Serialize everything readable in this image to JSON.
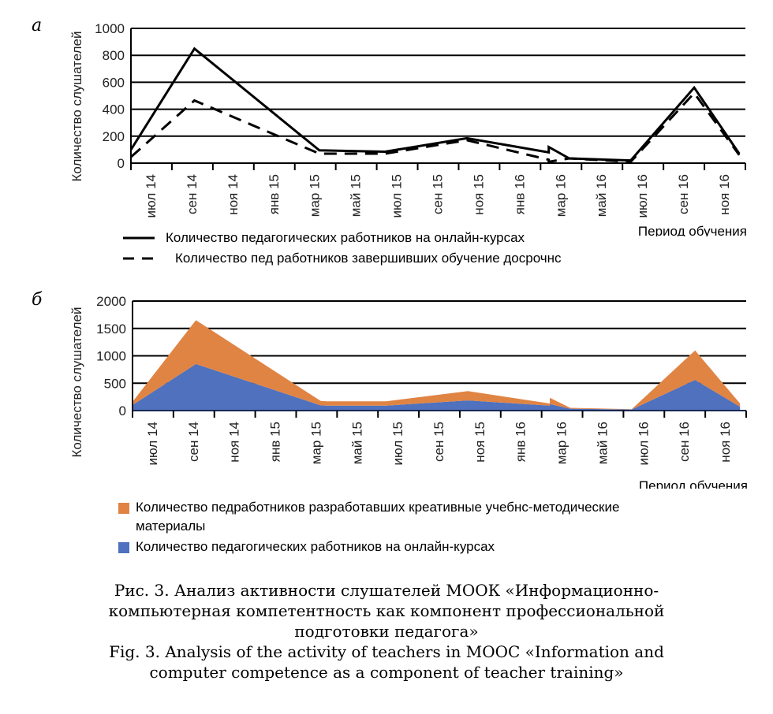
{
  "chart_data": [
    {
      "panel": "а",
      "type": "line",
      "ylabel": "Количество слушателей",
      "xlabel": "Период обучения",
      "ylim": [
        0,
        1000
      ],
      "yticks": [
        "0",
        "200",
        "400",
        "600",
        "800",
        "1000"
      ],
      "categories": [
        "июл 14",
        "сен 14",
        "ноя 14",
        "янв 15",
        "мар 15",
        "май 15",
        "июл 15",
        "сен 15",
        "ноя 15",
        "янв 16",
        "мар 16",
        "май 16",
        "июл 16",
        "сен 16",
        "ноя 16"
      ],
      "grid": true,
      "series": [
        {
          "name": "Количество педагогических работников на онлайн-курсах",
          "style": "solid",
          "points": [
            {
              "x": 0.0,
              "y": 100
            },
            {
              "x": 1.55,
              "y": 850
            },
            {
              "x": 4.6,
              "y": 95
            },
            {
              "x": 6.2,
              "y": 85
            },
            {
              "x": 8.2,
              "y": 185
            },
            {
              "x": 10.2,
              "y": 80
            },
            {
              "x": 10.2,
              "y": 120
            },
            {
              "x": 10.7,
              "y": 35
            },
            {
              "x": 12.2,
              "y": 20
            },
            {
              "x": 13.75,
              "y": 560
            },
            {
              "x": 14.85,
              "y": 70
            }
          ]
        },
        {
          "name": "Количество пед  работников  завершивших обучение досрочнс",
          "style": "dashed",
          "points": [
            {
              "x": 0.0,
              "y": 45
            },
            {
              "x": 1.55,
              "y": 465
            },
            {
              "x": 4.6,
              "y": 70
            },
            {
              "x": 6.2,
              "y": 70
            },
            {
              "x": 8.2,
              "y": 170
            },
            {
              "x": 10.2,
              "y": 25
            },
            {
              "x": 10.2,
              "y": 10
            },
            {
              "x": 10.7,
              "y": 35
            },
            {
              "x": 12.2,
              "y": 10
            },
            {
              "x": 13.75,
              "y": 520
            },
            {
              "x": 14.85,
              "y": 60
            }
          ]
        }
      ]
    },
    {
      "panel": "б",
      "type": "area",
      "stacked": true,
      "ylabel": "Количество слушателей",
      "xlabel": "Период обучения",
      "ylim": [
        0,
        2000
      ],
      "yticks": [
        "0",
        "500",
        "1000",
        "1500",
        "2000"
      ],
      "categories": [
        "июл 14",
        "сен 14",
        "ноя 14",
        "янв 15",
        "мар 15",
        "май 15",
        "июл 15",
        "сен 15",
        "ноя 15",
        "янв 16",
        "мар 16",
        "май 16",
        "июл 16",
        "сен 16",
        "ноя 16"
      ],
      "grid": true,
      "x": [
        0.0,
        1.55,
        4.6,
        4.75,
        6.2,
        8.2,
        10.2,
        10.2,
        10.7,
        12.2,
        13.75,
        14.85
      ],
      "series": [
        {
          "name": "Количество педагогических работников на онлайн-курсах",
          "color": "#4f71be",
          "values": [
            100,
            850,
            95,
            90,
            90,
            185,
            90,
            120,
            35,
            20,
            560,
            70
          ]
        },
        {
          "name": "Количество педработников  разработавших креативные учебнс-методические материалы",
          "color": "#e08444",
          "values": [
            60,
            800,
            80,
            80,
            80,
            170,
            40,
            115,
            15,
            5,
            540,
            60
          ]
        }
      ]
    }
  ],
  "panels": {
    "a_letter": "а",
    "b_letter": "б"
  },
  "legend_a": {
    "solid_label": "Количество педагогических работников на онлайн-курсах",
    "dashed_label": "Количество пед  работников  завершивших обучение досрочнс"
  },
  "legend_b": {
    "orange_label_line1": "Количество педработников  разработавших креативные учебнс-методические",
    "orange_label_line2": "материалы",
    "blue_label": "Количество педагогических работников на онлайн-курсах",
    "orange_color": "#e08444",
    "blue_color": "#4f71be"
  },
  "caption": {
    "ru_line1": "Рис. 3. Анализ активности слушателей МООК «Информационно-",
    "ru_line2": "компьютерная компетентность как компонент профессиональной",
    "ru_line3": "подготовки педагога»",
    "en_line1": "Fig. 3. Analysis of the activity of teachers in MOOC «Information and",
    "en_line2": "computer competence as a component of teacher training»"
  }
}
